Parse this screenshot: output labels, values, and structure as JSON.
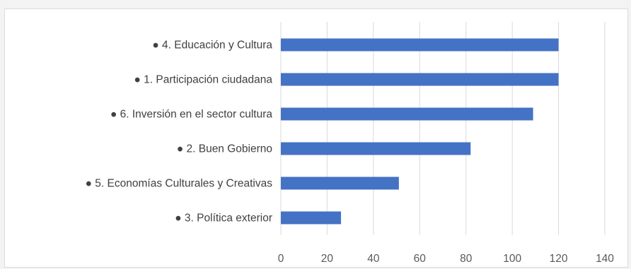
{
  "chart_data": {
    "type": "bar",
    "orientation": "horizontal",
    "categories": [
      "● 4. Educación y Cultura",
      "● 1. Participación ciudadana",
      "● 6. Inversión en el sector cultura",
      "● 2. Buen Gobierno",
      "● 5. Economías Culturales y Creativas",
      "● 3. Política exterior"
    ],
    "values": [
      120,
      120,
      109,
      82,
      51,
      26
    ],
    "xlim": [
      0,
      140
    ],
    "xticks": [
      "0",
      "20",
      "40",
      "60",
      "80",
      "100",
      "120",
      "140"
    ],
    "grid": true,
    "legend": "none",
    "bar_color": "#4472c4",
    "grid_color": "#d9d9d9"
  }
}
